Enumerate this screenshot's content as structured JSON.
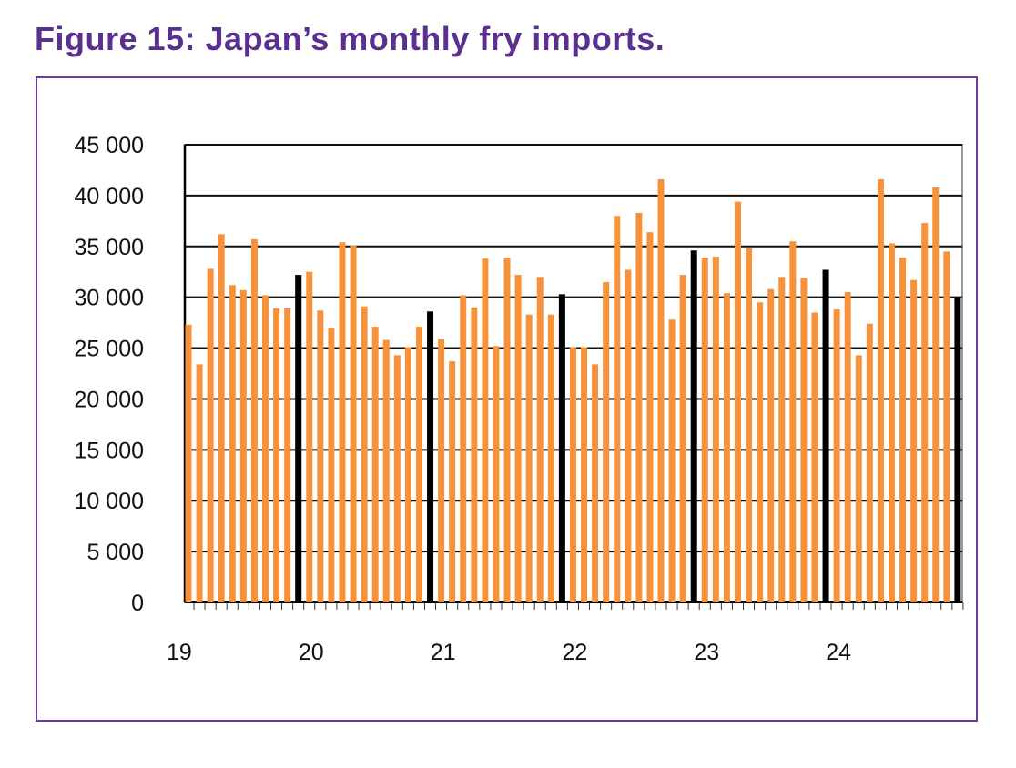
{
  "title": "Figure 15: Japan’s monthly fry imports.",
  "chart_data": {
    "type": "bar",
    "title": "Figure 15: Japan’s monthly fry imports.",
    "xlabel": "",
    "ylabel": "",
    "ylim": [
      0,
      45000
    ],
    "yticks": [
      0,
      5000,
      10000,
      15000,
      20000,
      25000,
      30000,
      35000,
      40000,
      45000
    ],
    "ytick_labels": [
      "0",
      "5 000",
      "10 000",
      "15 000",
      "20 000",
      "25 000",
      "30 000",
      "35 000",
      "40 000",
      "45 000"
    ],
    "xtick_labels": [
      "19",
      "20",
      "21",
      "22",
      "23",
      "24"
    ],
    "start_month": "2019-02",
    "highlight": "December bars shown in black",
    "colors": {
      "bar": "#f7923a",
      "highlight": "#000000",
      "title": "#5a2f8f"
    },
    "values": [
      27300,
      23400,
      32800,
      36200,
      31200,
      30700,
      35700,
      30200,
      28900,
      28900,
      32200,
      32500,
      28700,
      27000,
      35400,
      35100,
      29100,
      27100,
      25800,
      24300,
      25100,
      27100,
      28600,
      25900,
      23700,
      30200,
      29000,
      33800,
      25200,
      33900,
      32200,
      28300,
      32000,
      28300,
      30300,
      25100,
      25100,
      23400,
      31500,
      38000,
      32700,
      38300,
      36400,
      41600,
      27800,
      32200,
      34600,
      33900,
      34000,
      30400,
      39400,
      34800,
      29500,
      30800,
      32000,
      35500,
      31900,
      28500,
      32700,
      28800,
      30500,
      24300,
      27400,
      41600,
      35300,
      33900,
      31700,
      37300,
      40800,
      34500,
      30000
    ]
  }
}
